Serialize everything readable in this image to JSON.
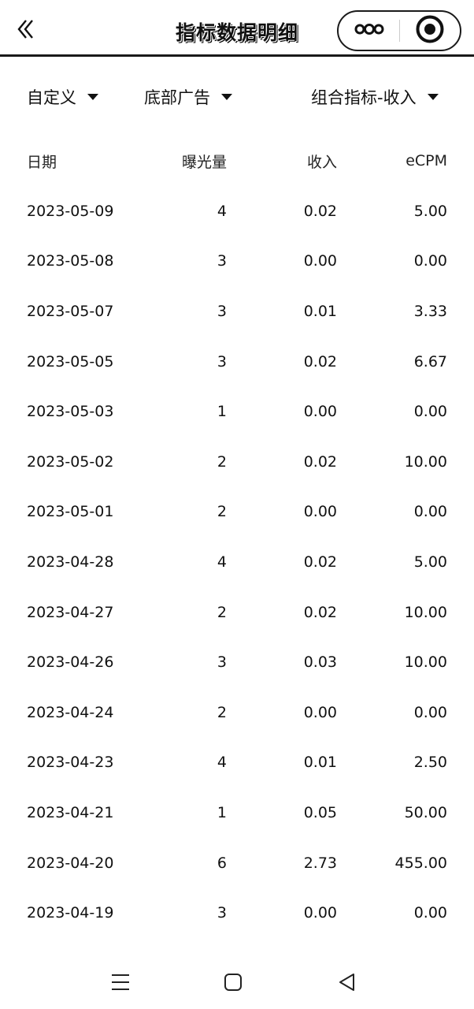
{
  "header": {
    "title": "指标数据明细",
    "back_icon": "chevron-double-left-icon",
    "more_icon": "more-dots-icon",
    "close_icon": "target-close-icon"
  },
  "filters": [
    {
      "label": "自定义"
    },
    {
      "label": "底部广告"
    },
    {
      "label": "组合指标-收入"
    }
  ],
  "table": {
    "headers": {
      "date": "日期",
      "exposure": "曝光量",
      "income": "收入",
      "ecpm": "eCPM"
    },
    "rows": [
      {
        "date": "2023-05-09",
        "exposure": "4",
        "income": "0.02",
        "ecpm": "5.00"
      },
      {
        "date": "2023-05-08",
        "exposure": "3",
        "income": "0.00",
        "ecpm": "0.00"
      },
      {
        "date": "2023-05-07",
        "exposure": "3",
        "income": "0.01",
        "ecpm": "3.33"
      },
      {
        "date": "2023-05-05",
        "exposure": "3",
        "income": "0.02",
        "ecpm": "6.67"
      },
      {
        "date": "2023-05-03",
        "exposure": "1",
        "income": "0.00",
        "ecpm": "0.00"
      },
      {
        "date": "2023-05-02",
        "exposure": "2",
        "income": "0.02",
        "ecpm": "10.00"
      },
      {
        "date": "2023-05-01",
        "exposure": "2",
        "income": "0.00",
        "ecpm": "0.00"
      },
      {
        "date": "2023-04-28",
        "exposure": "4",
        "income": "0.02",
        "ecpm": "5.00"
      },
      {
        "date": "2023-04-27",
        "exposure": "2",
        "income": "0.02",
        "ecpm": "10.00"
      },
      {
        "date": "2023-04-26",
        "exposure": "3",
        "income": "0.03",
        "ecpm": "10.00"
      },
      {
        "date": "2023-04-24",
        "exposure": "2",
        "income": "0.00",
        "ecpm": "0.00"
      },
      {
        "date": "2023-04-23",
        "exposure": "4",
        "income": "0.01",
        "ecpm": "2.50"
      },
      {
        "date": "2023-04-21",
        "exposure": "1",
        "income": "0.05",
        "ecpm": "50.00"
      },
      {
        "date": "2023-04-20",
        "exposure": "6",
        "income": "2.73",
        "ecpm": "455.00"
      },
      {
        "date": "2023-04-19",
        "exposure": "3",
        "income": "0.00",
        "ecpm": "0.00"
      }
    ]
  },
  "navbar": {
    "menu_icon": "menu-icon",
    "home_icon": "home-square-icon",
    "back_icon": "back-triangle-icon"
  }
}
